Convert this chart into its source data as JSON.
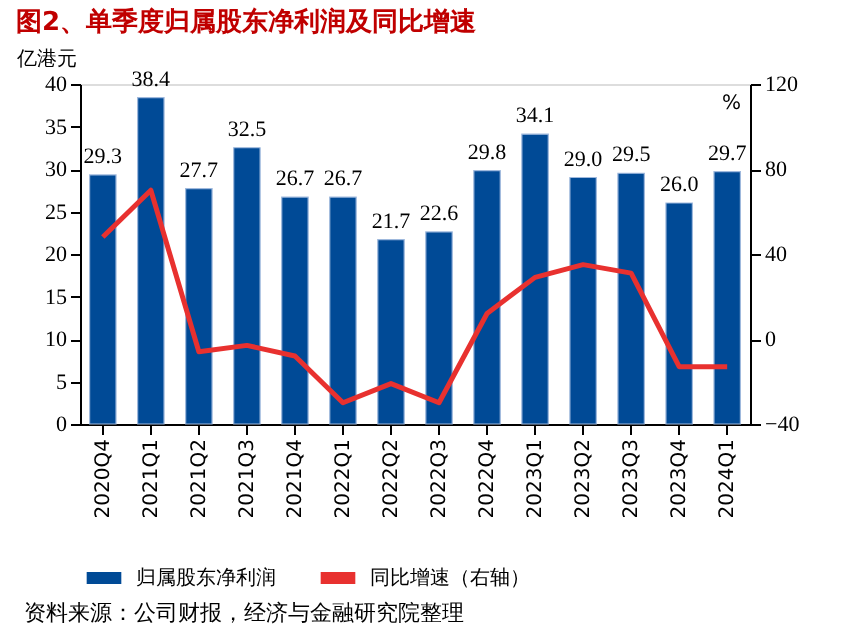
{
  "chart_data": {
    "type": "bar",
    "title": "图2、单季度归属股东净利润及同比增速",
    "ylabel": "亿港元",
    "y2label": "%",
    "categories": [
      "2020Q4",
      "2021Q1",
      "2021Q2",
      "2021Q3",
      "2021Q4",
      "2022Q1",
      "2022Q2",
      "2022Q3",
      "2022Q4",
      "2023Q1",
      "2023Q2",
      "2023Q3",
      "2023Q4",
      "2024Q1"
    ],
    "series": [
      {
        "name": "归属股东净利润",
        "color": "#004a96",
        "values": [
          29.3,
          38.4,
          27.7,
          32.5,
          26.7,
          26.7,
          21.7,
          22.6,
          29.8,
          34.1,
          29.0,
          29.5,
          26.0,
          29.7
        ],
        "value_labels": [
          "29.3",
          "38.4",
          "27.7",
          "32.5",
          "26.7",
          "26.7",
          "21.7",
          "22.6",
          "29.8",
          "34.1",
          "29.0",
          "29.5",
          "26.0",
          "29.7"
        ]
      },
      {
        "name": "同比增速（右轴）",
        "color": "#e8312f",
        "type": "line",
        "axis": "y2",
        "values": [
          48,
          70,
          -6,
          -3,
          -8,
          -30,
          -21,
          -30,
          12,
          29,
          35,
          31,
          -13,
          -13
        ]
      }
    ],
    "ylim": [
      0,
      40
    ],
    "yticks": [
      0,
      5,
      10,
      15,
      20,
      25,
      30,
      35,
      40
    ],
    "y2lim": [
      -40,
      120
    ],
    "y2ticks": [
      -40,
      0,
      40,
      80,
      120
    ],
    "legend": "bottom",
    "grid": false,
    "marker": "none",
    "line_style": "solid",
    "annotations": [
      "资料来源：公司财报，经济与金融研究院整理"
    ]
  }
}
